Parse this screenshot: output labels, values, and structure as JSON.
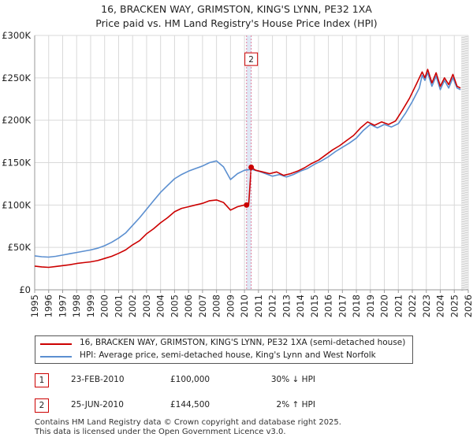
{
  "header": {
    "title": "16, BRACKEN WAY, GRIMSTON, KING'S LYNN, PE32 1XA",
    "subtitle": "Price paid vs. HM Land Registry's House Price Index (HPI)"
  },
  "colors": {
    "price_paid": "#cc0000",
    "hpi": "#5b8fd0",
    "marker_line": "#e07a9a",
    "shade": "#dfe8f5",
    "grid": "#d9d9d9"
  },
  "chart_data": {
    "type": "line",
    "xlim": [
      1995,
      2026
    ],
    "ylim": [
      0,
      300000
    ],
    "x_ticks": [
      "1995",
      "1996",
      "1997",
      "1998",
      "1999",
      "2000",
      "2001",
      "2002",
      "2003",
      "2004",
      "2005",
      "2006",
      "2007",
      "2008",
      "2009",
      "2010",
      "2011",
      "2012",
      "2013",
      "2014",
      "2015",
      "2016",
      "2017",
      "2018",
      "2019",
      "2020",
      "2021",
      "2022",
      "2023",
      "2024",
      "2025",
      "2026"
    ],
    "y_ticks": [
      {
        "value": 0,
        "label": "£0"
      },
      {
        "value": 50000,
        "label": "£50K"
      },
      {
        "value": 100000,
        "label": "£100K"
      },
      {
        "value": 150000,
        "label": "£150K"
      },
      {
        "value": 200000,
        "label": "£200K"
      },
      {
        "value": 250000,
        "label": "£250K"
      },
      {
        "value": 300000,
        "label": "£300K"
      }
    ],
    "series": [
      {
        "name": "16, BRACKEN WAY, GRIMSTON, KING'S LYNN, PE32 1XA (semi-detached house)",
        "color": "#cc0000",
        "x": [
          1995.0,
          1995.5,
          1996.0,
          1996.5,
          1997.0,
          1997.5,
          1998.0,
          1998.5,
          1999.0,
          1999.5,
          2000.0,
          2000.5,
          2001.0,
          2001.5,
          2002.0,
          2002.5,
          2003.0,
          2003.5,
          2004.0,
          2004.5,
          2005.0,
          2005.5,
          2006.0,
          2006.5,
          2007.0,
          2007.5,
          2008.0,
          2008.5,
          2009.0,
          2009.5,
          2010.0,
          2010.15,
          2010.3,
          2010.48,
          2010.8,
          2011.3,
          2011.8,
          2012.3,
          2012.8,
          2013.3,
          2013.8,
          2014.3,
          2014.8,
          2015.3,
          2015.8,
          2016.3,
          2016.8,
          2017.3,
          2017.8,
          2018.3,
          2018.8,
          2019.3,
          2019.8,
          2020.3,
          2020.8,
          2021.3,
          2021.8,
          2022.3,
          2022.7,
          2022.9,
          2023.1,
          2023.4,
          2023.7,
          2024.0,
          2024.3,
          2024.6,
          2024.9,
          2025.2,
          2025.45
        ],
        "values": [
          28000,
          27000,
          26500,
          27500,
          28500,
          29500,
          31000,
          32000,
          33000,
          34500,
          37000,
          39500,
          43000,
          47000,
          53000,
          58000,
          66000,
          72000,
          79000,
          85000,
          92000,
          96000,
          98000,
          100000,
          102000,
          105000,
          106000,
          103000,
          94000,
          98000,
          100000,
          100000,
          101000,
          144500,
          141000,
          139000,
          137000,
          139000,
          135000,
          137000,
          140000,
          144000,
          149000,
          153000,
          159000,
          165000,
          170000,
          176000,
          182000,
          191000,
          198000,
          194000,
          198000,
          195000,
          199000,
          212000,
          226000,
          243000,
          257000,
          250000,
          260000,
          244000,
          256000,
          240000,
          250000,
          242000,
          254000,
          240000,
          238000
        ]
      },
      {
        "name": "HPI: Average price, semi-detached house, King's Lynn and West Norfolk",
        "color": "#5b8fd0",
        "x": [
          1995.0,
          1995.5,
          1996.0,
          1996.5,
          1997.0,
          1997.5,
          1998.0,
          1998.5,
          1999.0,
          1999.5,
          2000.0,
          2000.5,
          2001.0,
          2001.5,
          2002.0,
          2002.5,
          2003.0,
          2003.5,
          2004.0,
          2004.5,
          2005.0,
          2005.5,
          2006.0,
          2006.5,
          2007.0,
          2007.5,
          2008.0,
          2008.5,
          2009.0,
          2009.5,
          2010.0,
          2010.5,
          2011.0,
          2011.5,
          2012.0,
          2012.5,
          2013.0,
          2013.5,
          2014.0,
          2014.5,
          2015.0,
          2015.5,
          2016.0,
          2016.5,
          2017.0,
          2017.5,
          2018.0,
          2018.5,
          2019.0,
          2019.5,
          2020.0,
          2020.5,
          2021.0,
          2021.5,
          2022.0,
          2022.5,
          2022.7,
          2022.9,
          2023.1,
          2023.4,
          2023.7,
          2024.0,
          2024.3,
          2024.6,
          2024.9,
          2025.2,
          2025.45
        ],
        "values": [
          40000,
          39000,
          38500,
          39500,
          41000,
          42500,
          44000,
          45500,
          47000,
          49000,
          52000,
          56000,
          61000,
          67000,
          76000,
          85000,
          95000,
          105000,
          115000,
          123000,
          131000,
          136000,
          140000,
          143000,
          146000,
          150000,
          152000,
          145000,
          130000,
          137000,
          141000,
          142000,
          140000,
          137000,
          134000,
          136000,
          133000,
          136000,
          140000,
          143000,
          148000,
          152000,
          157000,
          163000,
          168000,
          173000,
          179000,
          188000,
          195000,
          191000,
          195000,
          192000,
          196000,
          208000,
          222000,
          238000,
          253000,
          247000,
          256000,
          240000,
          252000,
          236000,
          247000,
          238000,
          250000,
          238000,
          236000
        ]
      }
    ],
    "transactions": [
      {
        "id": "1",
        "x": 2010.15,
        "value": 100000,
        "date": "23-FEB-2010",
        "price": "£100,000",
        "hpi": "30% ↓ HPI"
      },
      {
        "id": "2",
        "x": 2010.48,
        "value": 144500,
        "date": "25-JUN-2010",
        "price": "£144,500",
        "hpi": "2% ↑ HPI"
      }
    ],
    "forecast_start": 2025.5,
    "shaded_range": [
      2010.15,
      2010.48
    ],
    "annotations": [
      {
        "id": "2",
        "x": 2010.48,
        "value": 272000
      }
    ]
  },
  "legend": {
    "red_label": "16, BRACKEN WAY, GRIMSTON, KING'S LYNN, PE32 1XA (semi-detached house)",
    "blue_label": "HPI: Average price, semi-detached house, King's Lynn and West Norfolk"
  },
  "footer": {
    "line1": "Contains HM Land Registry data © Crown copyright and database right 2025.",
    "line2": "This data is licensed under the Open Government Licence v3.0."
  }
}
